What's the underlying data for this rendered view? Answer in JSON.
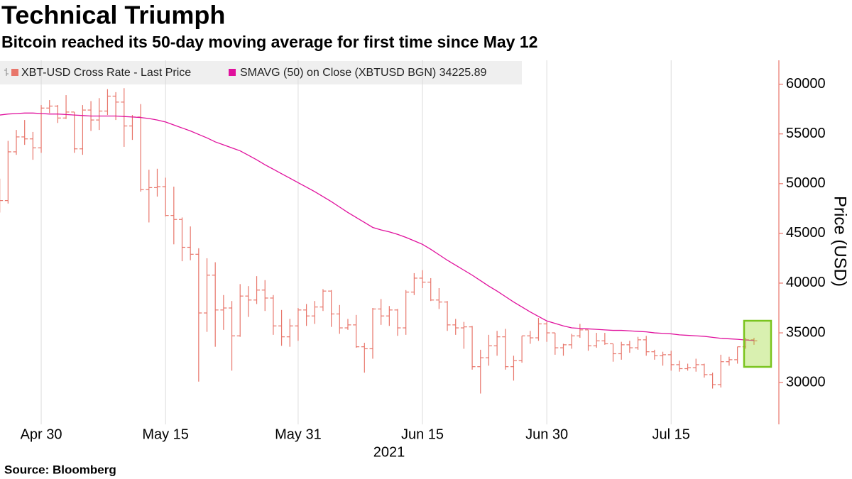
{
  "chart_data": {
    "type": "ohlc",
    "title": "Technical Triumph",
    "subtitle": "Bitcoin reached its 50-day moving average for first time since May 12",
    "source": "Source: Bloomberg",
    "ylabel": "Price (USD)",
    "xlabel": "2021",
    "x": [
      "2021-04-25",
      "2021-04-26",
      "2021-04-27",
      "2021-04-28",
      "2021-04-29",
      "2021-04-30",
      "2021-05-01",
      "2021-05-02",
      "2021-05-03",
      "2021-05-04",
      "2021-05-05",
      "2021-05-06",
      "2021-05-07",
      "2021-05-08",
      "2021-05-09",
      "2021-05-10",
      "2021-05-11",
      "2021-05-12",
      "2021-05-13",
      "2021-05-14",
      "2021-05-15",
      "2021-05-16",
      "2021-05-17",
      "2021-05-18",
      "2021-05-19",
      "2021-05-20",
      "2021-05-21",
      "2021-05-22",
      "2021-05-23",
      "2021-05-24",
      "2021-05-25",
      "2021-05-26",
      "2021-05-27",
      "2021-05-28",
      "2021-05-29",
      "2021-05-30",
      "2021-05-31",
      "2021-06-01",
      "2021-06-02",
      "2021-06-03",
      "2021-06-04",
      "2021-06-05",
      "2021-06-06",
      "2021-06-07",
      "2021-06-08",
      "2021-06-09",
      "2021-06-10",
      "2021-06-11",
      "2021-06-12",
      "2021-06-13",
      "2021-06-14",
      "2021-06-15",
      "2021-06-16",
      "2021-06-17",
      "2021-06-18",
      "2021-06-19",
      "2021-06-20",
      "2021-06-21",
      "2021-06-22",
      "2021-06-23",
      "2021-06-24",
      "2021-06-25",
      "2021-06-26",
      "2021-06-27",
      "2021-06-28",
      "2021-06-29",
      "2021-06-30",
      "2021-07-01",
      "2021-07-02",
      "2021-07-03",
      "2021-07-04",
      "2021-07-05",
      "2021-07-06",
      "2021-07-07",
      "2021-07-08",
      "2021-07-09",
      "2021-07-10",
      "2021-07-11",
      "2021-07-12",
      "2021-07-13",
      "2021-07-14",
      "2021-07-15",
      "2021-07-16",
      "2021-07-17",
      "2021-07-18",
      "2021-07-19",
      "2021-07-20",
      "2021-07-21",
      "2021-07-22",
      "2021-07-23",
      "2021-07-24",
      "2021-07-25"
    ],
    "series": [
      {
        "name": "XBT-USD Cross Rate - Last Price",
        "type": "ohlc",
        "color": "#e8766b",
        "open": [
          50100,
          48300,
          53200,
          54700,
          54500,
          53600,
          57600,
          57800,
          56600,
          57200,
          53500,
          57400,
          56400,
          57300,
          58800,
          58200,
          55800,
          56700,
          49400,
          49600,
          49700,
          46800,
          46400,
          43600,
          42900,
          37000,
          40800,
          37300,
          37500,
          34700,
          38700,
          38300,
          39300,
          38500,
          35700,
          34600,
          35700,
          37300,
          36700,
          37600,
          39200,
          36900,
          35500,
          35800,
          33600,
          33400,
          37400,
          36700,
          37300,
          35500,
          39100,
          40500,
          40100,
          38300,
          38100,
          35800,
          35500,
          35600,
          31600,
          32500,
          33700,
          34600,
          31600,
          32200,
          34700,
          34500,
          35900,
          35000,
          33500,
          33800,
          34700,
          35300,
          33700,
          34200,
          33900,
          32900,
          33800,
          33500,
          34300,
          33100,
          32700,
          32800,
          31800,
          31400,
          31500,
          31800,
          30800,
          29800,
          32100,
          32300,
          33600,
          34300
        ],
        "high": [
          50500,
          54300,
          55400,
          56400,
          55200,
          57900,
          58400,
          57900,
          58900,
          57200,
          57900,
          58300,
          58600,
          59500,
          59200,
          59600,
          56900,
          58000,
          51400,
          51500,
          50600,
          49700,
          46600,
          45700,
          43500,
          42500,
          42100,
          38800,
          38200,
          39900,
          39700,
          40700,
          40300,
          38800,
          37300,
          36400,
          37500,
          37900,
          38200,
          39400,
          39300,
          37800,
          36400,
          36800,
          34000,
          37500,
          38400,
          37700,
          37400,
          39300,
          41000,
          41300,
          40500,
          39500,
          38200,
          36400,
          36100,
          35700,
          33300,
          34800,
          35200,
          35400,
          32700,
          34700,
          35200,
          36500,
          36100,
          35000,
          33900,
          34900,
          35900,
          35300,
          35000,
          35000,
          33900,
          34100,
          34200,
          34600,
          34700,
          33300,
          33100,
          33200,
          32200,
          31900,
          32400,
          31900,
          31000,
          32800,
          32600,
          33600,
          34500,
          34500
        ],
        "low": [
          47100,
          48000,
          52900,
          53900,
          52400,
          53100,
          57100,
          56100,
          56500,
          53100,
          52900,
          55300,
          55400,
          56900,
          56400,
          53700,
          54400,
          49200,
          46100,
          48700,
          46700,
          43900,
          42200,
          42300,
          30100,
          35100,
          33600,
          35300,
          31200,
          34600,
          36600,
          37900,
          37200,
          34800,
          33700,
          33600,
          34200,
          35700,
          35900,
          37200,
          35600,
          34900,
          35300,
          33500,
          31000,
          32400,
          35800,
          35700,
          34700,
          34800,
          38800,
          39500,
          38200,
          37400,
          35200,
          34800,
          33400,
          31300,
          28900,
          31700,
          32700,
          31300,
          30200,
          32000,
          33900,
          34200,
          34100,
          32800,
          32700,
          33400,
          34500,
          33200,
          33500,
          33800,
          32100,
          32300,
          33000,
          33300,
          32700,
          32300,
          31700,
          31200,
          31100,
          31200,
          31100,
          30500,
          29400,
          29500,
          31700,
          31900,
          33400,
          33800
        ],
        "close": [
          48300,
          53200,
          54700,
          54500,
          53600,
          57600,
          57800,
          56600,
          57200,
          53500,
          57400,
          56400,
          57300,
          58800,
          58200,
          55800,
          56700,
          49400,
          49600,
          49700,
          46800,
          46400,
          43600,
          42900,
          37000,
          40800,
          37300,
          37500,
          34700,
          38700,
          38300,
          39300,
          38500,
          35700,
          34600,
          35700,
          37300,
          36700,
          37600,
          39200,
          36900,
          35500,
          35800,
          33600,
          33400,
          37400,
          36700,
          37300,
          35500,
          39100,
          40500,
          40100,
          38300,
          38100,
          35800,
          35500,
          35600,
          31600,
          32500,
          33700,
          34600,
          31600,
          32200,
          34700,
          34500,
          35900,
          35000,
          33500,
          33800,
          34700,
          35300,
          33700,
          34200,
          33900,
          32900,
          33800,
          33500,
          34300,
          33100,
          32700,
          32800,
          31800,
          31400,
          31500,
          31800,
          30800,
          29800,
          32100,
          32300,
          33600,
          34300,
          34200
        ]
      },
      {
        "name": "SMAVG (50)  on Close (XBTUSD BGN) 34225.89",
        "type": "line",
        "color": "#e0119d",
        "values": [
          56900,
          57000,
          57050,
          57100,
          57100,
          57050,
          57000,
          57000,
          56950,
          56900,
          56850,
          56800,
          56800,
          56800,
          56800,
          56750,
          56700,
          56650,
          56550,
          56400,
          56200,
          55900,
          55600,
          55300,
          54950,
          54600,
          54200,
          53900,
          53600,
          53300,
          52850,
          52400,
          51900,
          51450,
          51000,
          50550,
          50100,
          49650,
          49200,
          48700,
          48200,
          47650,
          47100,
          46600,
          46100,
          45600,
          45350,
          45150,
          44900,
          44600,
          44250,
          43900,
          43400,
          42850,
          42300,
          41800,
          41300,
          40800,
          40250,
          39700,
          39200,
          38650,
          38100,
          37600,
          37100,
          36650,
          36200,
          35950,
          35700,
          35500,
          35450,
          35400,
          35350,
          35300,
          35250,
          35250,
          35200,
          35150,
          35100,
          35000,
          34950,
          34900,
          34800,
          34750,
          34700,
          34650,
          34550,
          34450,
          34400,
          34350,
          34280,
          34225.89
        ]
      }
    ],
    "xlim": [
      "2021-04-24",
      "2021-07-28"
    ],
    "xticks": [
      {
        "value": "2021-04-30",
        "label": "Apr 30"
      },
      {
        "value": "2021-05-15",
        "label": "May 15"
      },
      {
        "value": "2021-05-31",
        "label": "May 31"
      },
      {
        "value": "2021-06-15",
        "label": "Jun 15"
      },
      {
        "value": "2021-06-30",
        "label": "Jun 30"
      },
      {
        "value": "2021-07-15",
        "label": "Jul 15"
      }
    ],
    "ylim": [
      25800,
      62400
    ],
    "yticks": [
      30000,
      35000,
      40000,
      45000,
      50000,
      55000,
      60000
    ],
    "grid": {
      "x": true,
      "y": false
    },
    "y_axis_side": "right"
  }
}
